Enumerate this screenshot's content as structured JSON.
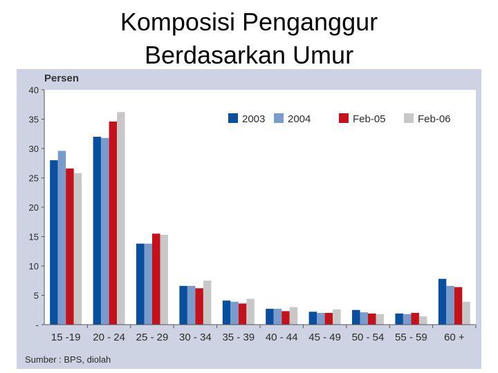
{
  "slide": {
    "title_line1": "Komposisi Penganggur",
    "title_line2": "Berdasarkan Umur"
  },
  "chart_data": {
    "type": "bar",
    "ylabel": "Persen",
    "source": "Sumber : BPS,  diolah",
    "ylim": [
      0,
      40
    ],
    "yticks": [
      "-",
      "5",
      "10",
      "15",
      "20",
      "25",
      "30",
      "35",
      "40"
    ],
    "grid": false,
    "legend_position": "top-right",
    "categories": [
      "15 -19",
      "20 - 24",
      "25 - 29",
      "30 - 34",
      "35 - 39",
      "40 - 44",
      "45 - 49",
      "50 - 54",
      "55 - 59",
      "60 +"
    ],
    "series": [
      {
        "name": "2003",
        "color": "#0a4f9e",
        "values": [
          28.0,
          32.0,
          13.8,
          6.6,
          4.1,
          2.7,
          2.2,
          2.5,
          1.9,
          7.8
        ]
      },
      {
        "name": "2004",
        "color": "#7a9ccd",
        "values": [
          29.6,
          31.8,
          13.8,
          6.6,
          3.9,
          2.7,
          2.0,
          2.1,
          1.8,
          6.6
        ]
      },
      {
        "name": "Feb-05",
        "color": "#c4121c",
        "values": [
          26.6,
          34.6,
          15.5,
          6.2,
          3.6,
          2.3,
          2.0,
          1.9,
          2.0,
          6.4
        ]
      },
      {
        "name": "Feb-06",
        "color": "#c8c8c8",
        "values": [
          25.8,
          36.2,
          15.3,
          7.5,
          4.4,
          3.0,
          2.6,
          1.8,
          1.4,
          3.9
        ]
      }
    ]
  }
}
